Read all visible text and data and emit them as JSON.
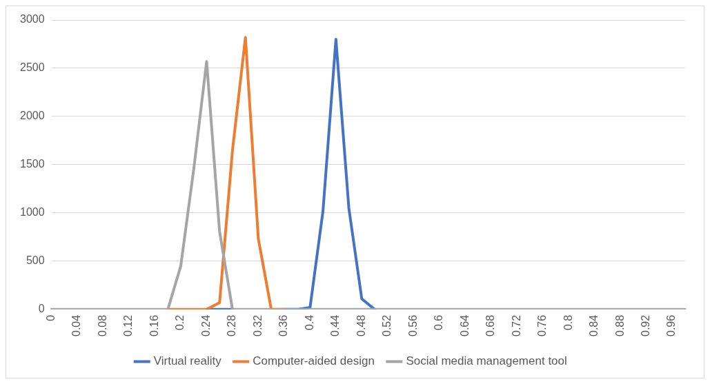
{
  "chart_data": {
    "type": "line",
    "categories": [
      "0",
      null,
      "0.04",
      null,
      "0.08",
      null,
      "0.12",
      null,
      "0.16",
      null,
      "0.2",
      null,
      "0.24",
      null,
      "0.28",
      null,
      "0.32",
      null,
      "0.36",
      null,
      "0.4",
      null,
      "0.44",
      null,
      "0.48",
      null,
      "0.52",
      null,
      "0.56",
      null,
      "0.6",
      null,
      "0.64",
      null,
      "0.68",
      null,
      "0.72",
      null,
      "0.76",
      null,
      "0.8",
      null,
      "0.84",
      null,
      "0.88",
      null,
      "0.92",
      null,
      "0.96",
      null
    ],
    "series": [
      {
        "name": "Virtual reality",
        "color": "#4472c4",
        "values": [
          null,
          null,
          null,
          null,
          null,
          null,
          null,
          null,
          null,
          null,
          null,
          null,
          0,
          0,
          0,
          null,
          null,
          null,
          0,
          0,
          20,
          1020,
          2800,
          1050,
          110,
          0,
          null,
          null,
          null,
          null,
          null,
          null,
          null,
          null,
          null,
          null,
          null,
          null,
          null,
          null,
          null,
          null,
          null,
          null,
          null,
          null,
          null,
          null,
          null,
          null
        ]
      },
      {
        "name": "Computer-aided design",
        "color": "#ed7d31",
        "values": [
          null,
          null,
          null,
          null,
          null,
          null,
          null,
          null,
          null,
          0,
          0,
          0,
          0,
          70,
          1650,
          2820,
          730,
          0,
          0,
          null,
          null,
          null,
          null,
          null,
          null,
          null,
          null,
          null,
          null,
          null,
          null,
          null,
          null,
          null,
          null,
          null,
          null,
          null,
          null,
          null,
          null,
          null,
          null,
          null,
          null,
          null,
          null,
          null,
          null,
          null
        ]
      },
      {
        "name": "Social media management tool",
        "color": "#a5a5a5",
        "values": [
          0,
          0,
          0,
          0,
          0,
          0,
          0,
          0,
          0,
          0,
          450,
          1450,
          2570,
          810,
          0,
          0,
          0,
          0,
          0,
          0,
          0,
          0,
          0,
          0,
          0,
          0,
          0,
          0,
          0,
          0,
          0,
          0,
          0,
          0,
          0,
          0,
          0,
          0,
          0,
          0,
          0,
          0,
          0,
          0,
          0,
          0,
          0,
          0,
          0,
          0
        ]
      }
    ],
    "ylim": [
      0,
      3000
    ],
    "yticks": [
      0,
      500,
      1000,
      1500,
      2000,
      2500,
      3000
    ],
    "grid": "y",
    "legend": "bottom",
    "marker": "none",
    "line_style": "solid"
  }
}
